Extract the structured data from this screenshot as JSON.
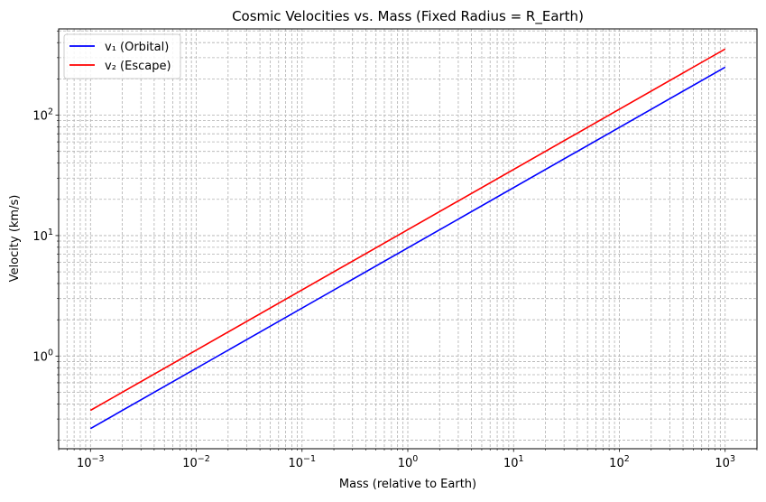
{
  "chart_data": {
    "type": "line",
    "title": "Cosmic Velocities vs. Mass (Fixed Radius = R_Earth)",
    "xlabel": "Mass (relative to Earth)",
    "ylabel": "Velocity (km/s)",
    "xscale": "log",
    "yscale": "log",
    "xlim": [
      0.0005,
      2000
    ],
    "ylim": [
      0.17,
      520
    ],
    "grid": true,
    "legend_position": "upper-left",
    "x_ticks": [
      {
        "value": 0.001,
        "base": "10",
        "exp": "−3"
      },
      {
        "value": 0.01,
        "base": "10",
        "exp": "−2"
      },
      {
        "value": 0.1,
        "base": "10",
        "exp": "−1"
      },
      {
        "value": 1,
        "base": "10",
        "exp": "0"
      },
      {
        "value": 10,
        "base": "10",
        "exp": "1"
      },
      {
        "value": 100,
        "base": "10",
        "exp": "2"
      },
      {
        "value": 1000,
        "base": "10",
        "exp": "3"
      }
    ],
    "y_ticks": [
      {
        "value": 1,
        "base": "10",
        "exp": "0"
      },
      {
        "value": 10,
        "base": "10",
        "exp": "1"
      },
      {
        "value": 100,
        "base": "10",
        "exp": "2"
      }
    ],
    "series": [
      {
        "name": "v₁ (Orbital)",
        "color": "#0000ff",
        "x": [
          0.001,
          1000
        ],
        "y": [
          0.25,
          250
        ]
      },
      {
        "name": "v₂ (Escape)",
        "color": "#ff0000",
        "x": [
          0.001,
          1000
        ],
        "y": [
          0.354,
          354
        ]
      }
    ]
  }
}
